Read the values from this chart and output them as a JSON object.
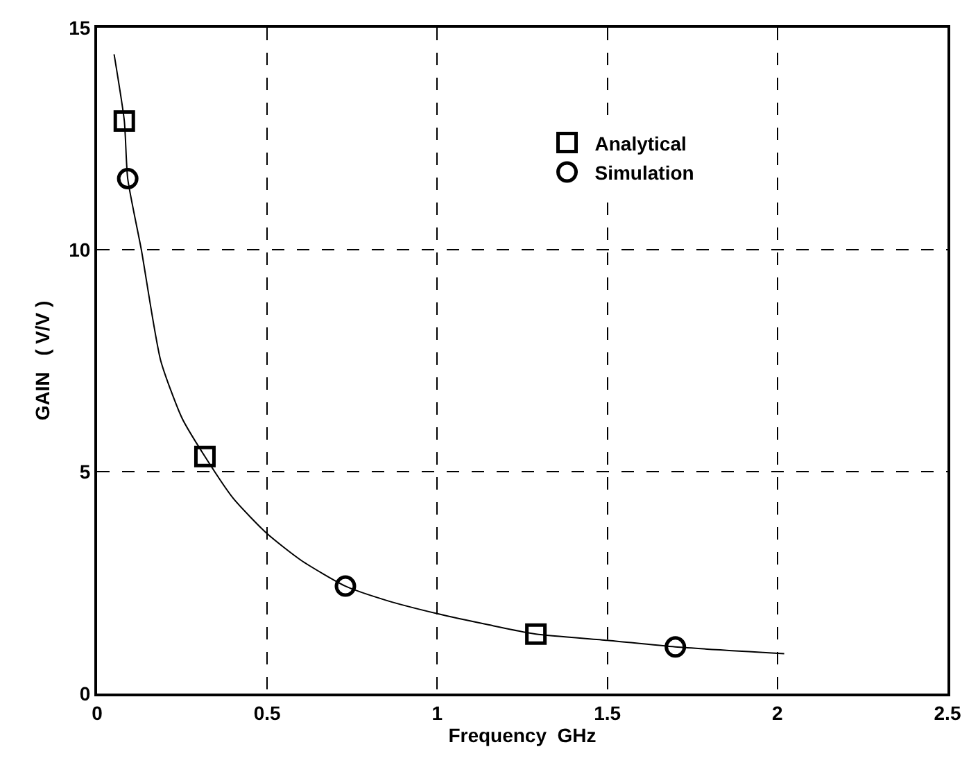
{
  "chart_data": {
    "type": "scatter",
    "xlabel": "Frequency  GHz",
    "ylabel": "GAIN   ( V/V )",
    "xlim": [
      0,
      2.5
    ],
    "ylim": [
      0,
      15
    ],
    "xticks": [
      0,
      0.5,
      1,
      1.5,
      2,
      2.5
    ],
    "yticks": [
      0,
      5,
      10,
      15
    ],
    "grid": true,
    "legend": "top right",
    "series": [
      {
        "type": "line",
        "color": "#000000",
        "marker": "none",
        "x": [
          0.05,
          0.08,
          0.09,
          0.13,
          0.187,
          0.25,
          0.317,
          0.4,
          0.5,
          0.6,
          0.73,
          0.85,
          1.0,
          1.15,
          1.29,
          1.5,
          1.7,
          2.02
        ],
        "values": [
          14.4,
          12.9,
          11.6,
          10,
          7.5,
          6.2,
          5.34,
          4.4,
          3.6,
          3.0,
          2.42,
          2.1,
          1.8,
          1.55,
          1.34,
          1.2,
          1.05,
          0.9
        ]
      },
      {
        "name": "Analytical",
        "color": "#000000",
        "marker": "square",
        "x": [
          0.08,
          0.317,
          1.29
        ],
        "values": [
          12.9,
          5.34,
          1.34
        ]
      },
      {
        "name": "Simulation",
        "color": "#000000",
        "marker": "circle",
        "x": [
          0.09,
          0.73,
          1.7
        ],
        "values": [
          11.6,
          2.42,
          1.05
        ]
      }
    ]
  }
}
